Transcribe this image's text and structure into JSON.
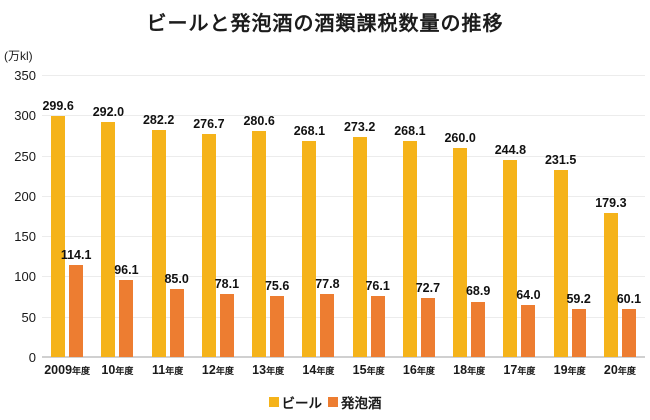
{
  "chart_data": {
    "type": "bar",
    "title": "ビールと発泡酒の酒類課税数量の推移",
    "unit_label": "(万kl)",
    "categories": [
      "2009年度",
      "10年度",
      "11年度",
      "12年度",
      "13年度",
      "14年度",
      "15年度",
      "16年度",
      "18年度",
      "17年度",
      "19年度",
      "20年度"
    ],
    "series": [
      {
        "name": "ビール",
        "color": "#F5B31A",
        "values": [
          299.6,
          292.0,
          282.2,
          276.7,
          280.6,
          268.1,
          273.2,
          268.1,
          260.0,
          244.8,
          231.5,
          179.3
        ]
      },
      {
        "name": "発泡酒",
        "color": "#ED7D31",
        "values": [
          114.1,
          96.1,
          85.0,
          78.1,
          75.6,
          77.8,
          76.1,
          72.7,
          68.9,
          64.0,
          59.2,
          60.1
        ]
      }
    ],
    "ylim": [
      0,
      350
    ],
    "yticks": [
      0,
      50,
      100,
      150,
      200,
      250,
      300,
      350
    ],
    "grid": true,
    "legend_position": "bottom",
    "value_labels": true
  }
}
